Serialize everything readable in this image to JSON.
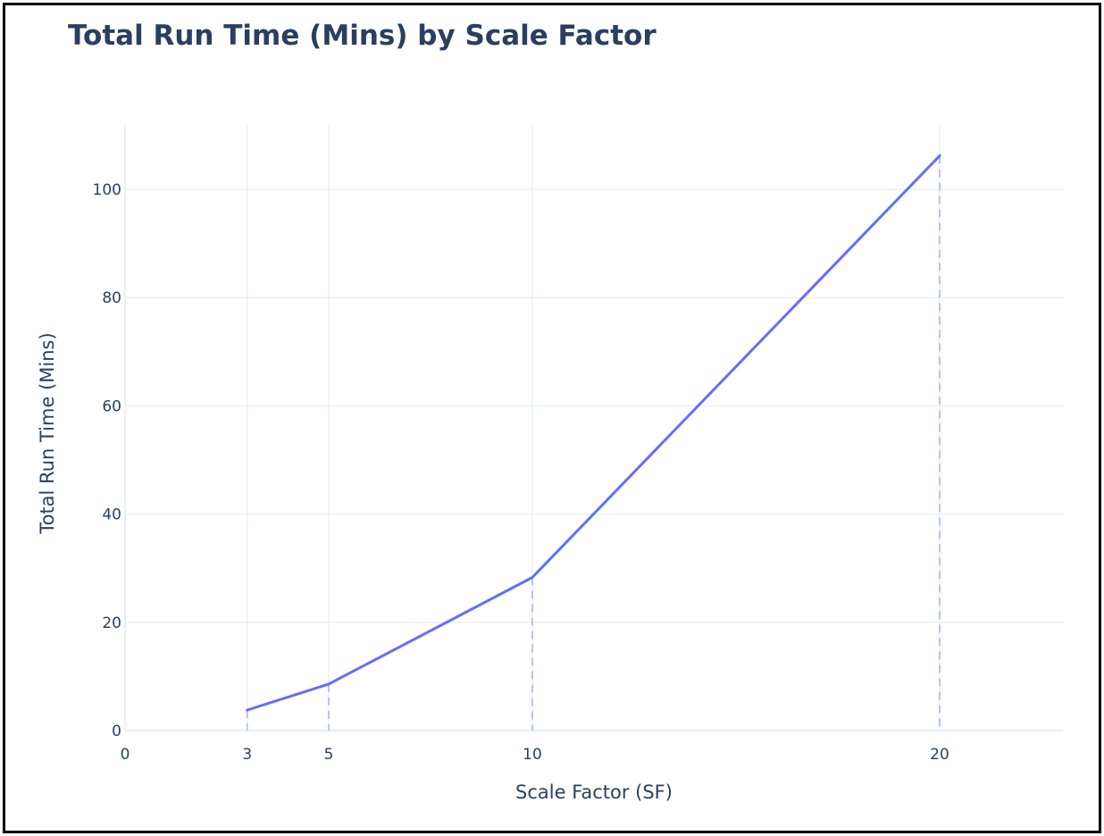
{
  "chart_data": {
    "type": "line",
    "title": "Total Run Time (Mins) by Scale Factor",
    "xlabel": "Scale Factor (SF)",
    "ylabel": "Total Run Time (Mins)",
    "x": [
      3,
      5,
      10,
      20
    ],
    "y": [
      3.8,
      8.6,
      28.3,
      106.2
    ],
    "xlim": [
      0,
      23
    ],
    "ylim": [
      0,
      110
    ],
    "xticks": [
      0,
      3,
      5,
      10,
      20
    ],
    "yticks": [
      0,
      20,
      40,
      60,
      80,
      100
    ],
    "grid": true,
    "drop_lines": true,
    "colors": {
      "line": "#636efa",
      "grid": "#ebf0f8",
      "zeroline": "#ebf0f8",
      "drop_line": "#a4b4ea",
      "text": "#2a3f5f"
    }
  }
}
